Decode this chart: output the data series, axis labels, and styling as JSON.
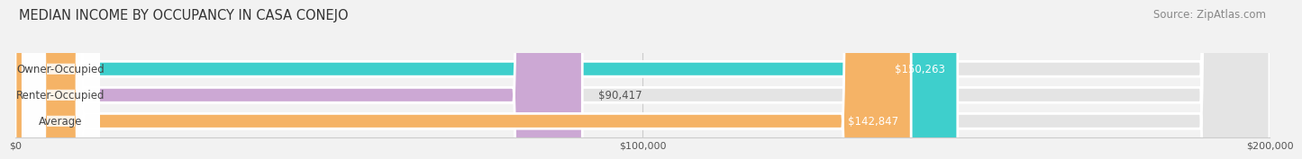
{
  "title": "MEDIAN INCOME BY OCCUPANCY IN CASA CONEJO",
  "source": "Source: ZipAtlas.com",
  "categories": [
    "Owner-Occupied",
    "Renter-Occupied",
    "Average"
  ],
  "values": [
    150263,
    90417,
    142847
  ],
  "bar_colors": [
    "#3ecfcc",
    "#cca8d4",
    "#f5b366"
  ],
  "value_labels": [
    "$150,263",
    "$90,417",
    "$142,847"
  ],
  "label_inside_bar": [
    true,
    false,
    true
  ],
  "xlim": [
    0,
    200000
  ],
  "xtick_labels": [
    "$0",
    "$100,000",
    "$200,000"
  ],
  "xtick_values": [
    0,
    100000,
    200000
  ],
  "background_color": "#f2f2f2",
  "bar_bg_color": "#e4e4e4",
  "title_fontsize": 10.5,
  "source_fontsize": 8.5,
  "label_fontsize": 8.5,
  "value_fontsize": 8.5,
  "bar_height": 0.58,
  "label_pill_color": "#ffffff",
  "label_text_color": "#444444",
  "value_label_inside_color": "#ffffff",
  "value_label_outside_color": "#555555"
}
